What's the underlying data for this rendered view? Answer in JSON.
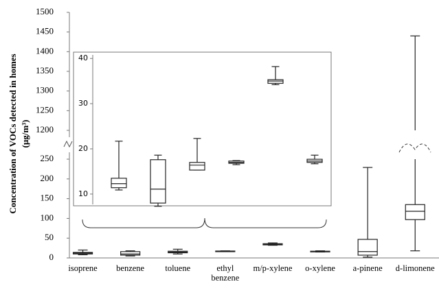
{
  "chart_data": {
    "type": "box",
    "ylabel": [
      "Concentration of VOCs detected in homes",
      "(μg/m³)"
    ],
    "categories": [
      "isoprene",
      "benzene",
      "toluene",
      "ethyl benzene",
      "m/p-xylene",
      "o-xylene",
      "a-pinene",
      "d-limonene"
    ],
    "y_segments": [
      {
        "ylim": [
          0,
          250
        ],
        "yticks": [
          0,
          50,
          100,
          150,
          200,
          250
        ]
      },
      {
        "ylim": [
          1200,
          1500
        ],
        "yticks": [
          1200,
          1250,
          1300,
          1350,
          1400,
          1450,
          1500
        ]
      }
    ],
    "boxes": [
      {
        "min": 8,
        "q1": 10,
        "median": 12,
        "q3": 14,
        "max": 20
      },
      {
        "min": 5,
        "q1": 7,
        "median": 10,
        "q3": 16,
        "max": 18
      },
      {
        "min": 10,
        "q1": 13,
        "median": 15,
        "q3": 17,
        "max": 22
      },
      {
        "min": 16,
        "q1": 16.5,
        "median": 17,
        "q3": 17.5,
        "max": 18
      },
      {
        "min": 32,
        "q1": 33,
        "median": 35,
        "q3": 36,
        "max": 38
      },
      {
        "min": 15,
        "q1": 16,
        "median": 16.5,
        "q3": 17,
        "max": 18
      },
      {
        "min": 2,
        "q1": 7,
        "median": 16,
        "q3": 47,
        "max": 229
      },
      {
        "min": 18,
        "q1": 97,
        "median": 118,
        "q3": 135,
        "max": 1440
      }
    ],
    "inset": {
      "ylim": [
        7.4,
        41.4
      ],
      "yticks": [
        10,
        20,
        30,
        40
      ],
      "boxes": [
        {
          "min": 10.9,
          "q1": 11.4,
          "median": 12.3,
          "q3": 13.5,
          "max": 21.7
        },
        {
          "min": 7.3,
          "q1": 8.0,
          "median": 11.1,
          "q3": 17.6,
          "max": 18.6
        },
        {
          "min": 15.3,
          "q1": 15.3,
          "median": 16.4,
          "q3": 17.0,
          "max": 22.3
        },
        {
          "min": 16.5,
          "q1": 16.8,
          "median": 17.0,
          "q3": 17.3,
          "max": 17.4
        },
        {
          "min": 34.2,
          "q1": 34.5,
          "median": 35.0,
          "q3": 35.3,
          "max": 38.2
        },
        {
          "min": 16.7,
          "q1": 17.0,
          "median": 17.3,
          "q3": 17.7,
          "max": 18.6
        }
      ]
    }
  }
}
